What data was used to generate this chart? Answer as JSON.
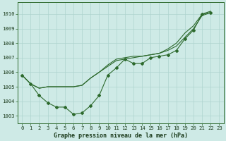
{
  "xlabel": "Graphe pression niveau de la mer (hPa)",
  "background_color": "#ceeae6",
  "grid_color": "#add4ce",
  "line_color": "#2d6a2d",
  "ylim": [
    1002.5,
    1010.8
  ],
  "xlim": [
    -0.5,
    23.5
  ],
  "yticks": [
    1003,
    1004,
    1005,
    1006,
    1007,
    1008,
    1009,
    1010
  ],
  "xticks": [
    0,
    1,
    2,
    3,
    4,
    5,
    6,
    7,
    8,
    9,
    10,
    11,
    12,
    13,
    14,
    15,
    16,
    17,
    18,
    19,
    20,
    21,
    22,
    23
  ],
  "s1_x": [
    0,
    1,
    2,
    3,
    4,
    5,
    6,
    7,
    8,
    9,
    10,
    11,
    12,
    13,
    14,
    15,
    16,
    17,
    18,
    19,
    20,
    21,
    22
  ],
  "s1_y": [
    1005.8,
    1005.2,
    1004.4,
    1003.9,
    1003.6,
    1003.6,
    1003.1,
    1003.2,
    1003.7,
    1004.4,
    1005.8,
    1006.3,
    1006.9,
    1006.6,
    1006.6,
    1007.0,
    1007.1,
    1007.2,
    1007.5,
    1008.3,
    1008.9,
    1010.0,
    1010.1
  ],
  "s2_x": [
    0,
    1,
    2,
    3,
    4,
    5,
    6,
    7,
    8,
    9,
    10,
    11,
    12,
    13,
    14,
    15,
    16,
    17,
    18,
    19,
    20,
    21,
    22
  ],
  "s2_y": [
    1005.8,
    1005.2,
    1004.9,
    1005.0,
    1005.0,
    1005.0,
    1005.0,
    1005.1,
    1005.6,
    1006.0,
    1006.5,
    1006.9,
    1007.0,
    1007.1,
    1007.1,
    1007.2,
    1007.3,
    1007.6,
    1008.0,
    1008.7,
    1009.2,
    1010.0,
    1010.2
  ],
  "s3_x": [
    0,
    1,
    2,
    3,
    4,
    5,
    6,
    7,
    8,
    9,
    10,
    11,
    12,
    13,
    14,
    15,
    16,
    17,
    18,
    19,
    20,
    21,
    22
  ],
  "s3_y": [
    1005.8,
    1005.2,
    1004.9,
    1005.0,
    1005.0,
    1005.0,
    1005.0,
    1005.1,
    1005.6,
    1006.0,
    1006.4,
    1006.8,
    1006.9,
    1007.0,
    1007.1,
    1007.2,
    1007.3,
    1007.5,
    1007.8,
    1008.4,
    1009.0,
    1009.9,
    1010.1
  ],
  "xlabel_fontsize": 6.0,
  "tick_fontsize": 5.2,
  "marker": "D",
  "markersize": 2.0
}
